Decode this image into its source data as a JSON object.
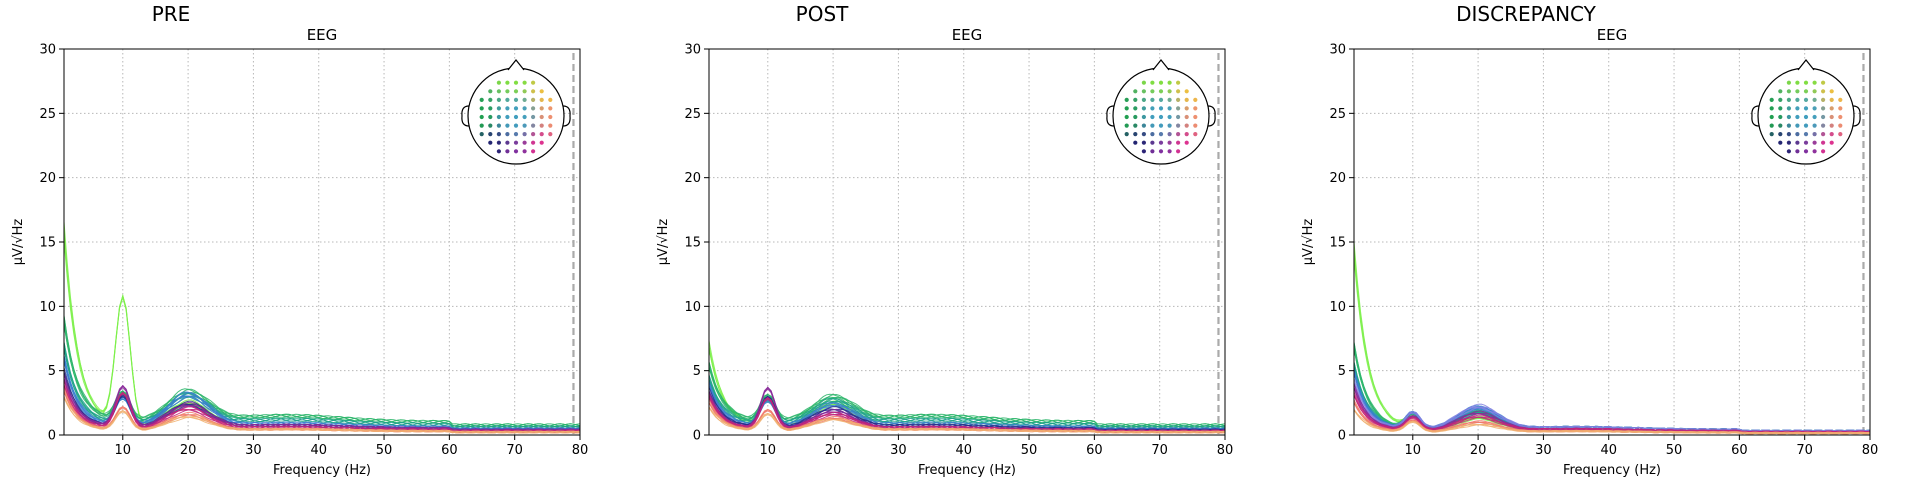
{
  "chart_data": [
    {
      "type": "line",
      "title": "PRE",
      "subtitle": "EEG",
      "xlabel": "Frequency (Hz)",
      "ylabel": "µV/√Hz",
      "xlim": [
        1,
        80
      ],
      "ylim": [
        0,
        30
      ],
      "xticks": [
        10,
        20,
        30,
        40,
        50,
        60,
        70,
        80
      ],
      "yticks": [
        0,
        5,
        10,
        15,
        20,
        25,
        30
      ],
      "grid": true,
      "cutoff_hz": 79,
      "legend": "sensor head map, top-right",
      "series_groups": [
        {
          "color": "#7cf04a",
          "start": 16.0,
          "alpha": 10,
          "beta": 2.0,
          "tail": 0.5,
          "count": 4
        },
        {
          "color": "#2bb56a",
          "start": 9.0,
          "alpha": 2.2,
          "beta": 2.3,
          "tail": 1.0,
          "count": 5
        },
        {
          "color": "#1fa38a",
          "start": 7.0,
          "alpha": 2.0,
          "beta": 2.2,
          "tail": 0.8,
          "count": 5
        },
        {
          "color": "#3a7fd0",
          "start": 6.0,
          "alpha": 2.2,
          "beta": 2.5,
          "tail": 0.6,
          "count": 5
        },
        {
          "color": "#2b2a8a",
          "start": 5.0,
          "alpha": 2.5,
          "beta": 1.9,
          "tail": 0.5,
          "count": 4
        },
        {
          "color": "#8a2a9a",
          "start": 4.5,
          "alpha": 3.2,
          "beta": 1.8,
          "tail": 0.5,
          "count": 4
        },
        {
          "color": "#c2247a",
          "start": 4.0,
          "alpha": 2.8,
          "beta": 1.6,
          "tail": 0.4,
          "count": 4
        },
        {
          "color": "#f07a6a",
          "start": 3.5,
          "alpha": 1.8,
          "beta": 1.3,
          "tail": 0.3,
          "count": 4
        },
        {
          "color": "#f0b070",
          "start": 3.0,
          "alpha": 1.5,
          "beta": 1.1,
          "tail": 0.3,
          "count": 3
        }
      ]
    },
    {
      "type": "line",
      "title": "POST",
      "subtitle": "EEG",
      "xlabel": "Frequency (Hz)",
      "ylabel": "µV/√Hz",
      "xlim": [
        1,
        80
      ],
      "ylim": [
        0,
        30
      ],
      "xticks": [
        10,
        20,
        30,
        40,
        50,
        60,
        70,
        80
      ],
      "yticks": [
        0,
        5,
        10,
        15,
        20,
        25,
        30
      ],
      "grid": true,
      "cutoff_hz": 79,
      "legend": "sensor head map, top-right",
      "series_groups": [
        {
          "color": "#7cf04a",
          "start": 7.0,
          "alpha": 2.0,
          "beta": 1.8,
          "tail": 0.6,
          "count": 4
        },
        {
          "color": "#2bb56a",
          "start": 5.5,
          "alpha": 2.0,
          "beta": 1.9,
          "tail": 1.0,
          "count": 5
        },
        {
          "color": "#1fa38a",
          "start": 4.5,
          "alpha": 1.9,
          "beta": 1.8,
          "tail": 0.8,
          "count": 5
        },
        {
          "color": "#3a7fd0",
          "start": 4.0,
          "alpha": 2.0,
          "beta": 1.7,
          "tail": 0.6,
          "count": 5
        },
        {
          "color": "#2b2a8a",
          "start": 3.5,
          "alpha": 2.4,
          "beta": 1.5,
          "tail": 0.5,
          "count": 4
        },
        {
          "color": "#8a2a9a",
          "start": 3.2,
          "alpha": 3.2,
          "beta": 1.4,
          "tail": 0.4,
          "count": 4
        },
        {
          "color": "#c2247a",
          "start": 3.0,
          "alpha": 2.4,
          "beta": 1.2,
          "tail": 0.4,
          "count": 4
        },
        {
          "color": "#f07a6a",
          "start": 2.6,
          "alpha": 1.6,
          "beta": 1.0,
          "tail": 0.3,
          "count": 4
        },
        {
          "color": "#f0b070",
          "start": 2.2,
          "alpha": 1.3,
          "beta": 0.9,
          "tail": 0.3,
          "count": 3
        }
      ]
    },
    {
      "type": "line",
      "title": "DISCREPANCY",
      "subtitle": "EEG",
      "xlabel": "Frequency (Hz)",
      "ylabel": "µV/√Hz",
      "xlim": [
        1,
        80
      ],
      "ylim": [
        0,
        30
      ],
      "xticks": [
        10,
        20,
        30,
        40,
        50,
        60,
        70,
        80
      ],
      "yticks": [
        0,
        5,
        10,
        15,
        20,
        25,
        30
      ],
      "grid": true,
      "cutoff_hz": 79,
      "legend": "sensor head map, top-right",
      "series_groups": [
        {
          "color": "#7cf04a",
          "start": 14.5,
          "alpha": 1.0,
          "beta": 1.0,
          "tail": 0.3,
          "count": 4
        },
        {
          "color": "#2bb56a",
          "start": 7.0,
          "alpha": 1.2,
          "beta": 1.3,
          "tail": 0.4,
          "count": 5
        },
        {
          "color": "#1fa38a",
          "start": 5.5,
          "alpha": 1.2,
          "beta": 1.4,
          "tail": 0.4,
          "count": 5
        },
        {
          "color": "#3a7fd0",
          "start": 5.0,
          "alpha": 1.3,
          "beta": 1.7,
          "tail": 0.4,
          "count": 5
        },
        {
          "color": "#8080e0",
          "start": 4.2,
          "alpha": 1.3,
          "beta": 1.8,
          "tail": 0.4,
          "count": 4
        },
        {
          "color": "#8a2a9a",
          "start": 3.8,
          "alpha": 1.1,
          "beta": 1.4,
          "tail": 0.3,
          "count": 4
        },
        {
          "color": "#c2247a",
          "start": 3.2,
          "alpha": 1.0,
          "beta": 1.1,
          "tail": 0.3,
          "count": 4
        },
        {
          "color": "#f07a6a",
          "start": 2.6,
          "alpha": 0.9,
          "beta": 0.8,
          "tail": 0.2,
          "count": 4
        },
        {
          "color": "#f0b070",
          "start": 2.0,
          "alpha": 0.8,
          "beta": 0.6,
          "tail": 0.2,
          "count": 3
        }
      ]
    }
  ],
  "sensor_colors": {
    "front": "#80e040",
    "front_right": "#f0c040",
    "left": "#20a050",
    "center": "#40a0c0",
    "right": "#f09070",
    "back_left": "#202070",
    "back_center": "#8030a0",
    "back_right": "#e03090"
  }
}
